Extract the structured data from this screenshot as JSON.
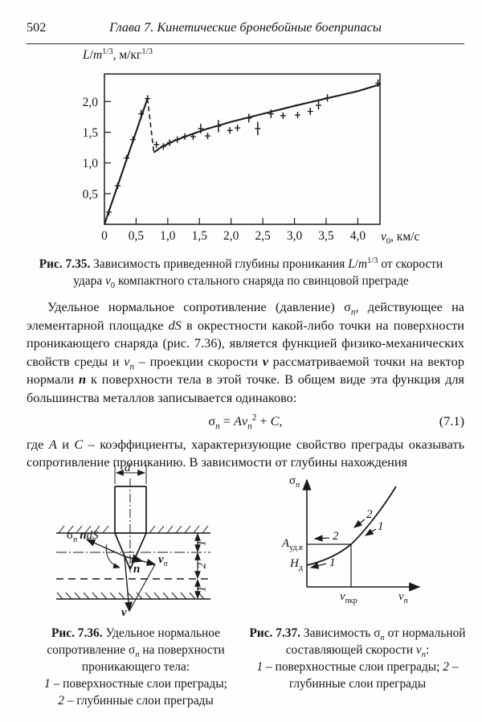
{
  "header": {
    "page_number": "502",
    "running_head": "Глава 7. Кинетические бронебойные боеприпасы"
  },
  "chart_data": {
    "type": "scatter",
    "title": "",
    "ylabel": "L/m^(1/3), м/кг^(1/3)",
    "xlabel": "v0, км/с",
    "ylabel_html": "<i>L</i>/<i>m</i><sup>1/3</sup>, м/кг<sup>1/3</sup>",
    "xlabel_html": "<i>v</i><sub>0</sub>, км/с",
    "xlim": [
      0,
      4.35
    ],
    "ylim": [
      0,
      2.45
    ],
    "xticks": [
      0,
      0.5,
      1.0,
      1.5,
      2.0,
      2.5,
      3.0,
      3.5,
      4.0
    ],
    "yticks": [
      0.5,
      1.0,
      1.5,
      2.0
    ],
    "grid": false,
    "curve_segments": [
      {
        "style": "solid",
        "points": [
          [
            0,
            0
          ],
          [
            0.68,
            2.05
          ]
        ]
      },
      {
        "style": "dashed",
        "points": [
          [
            0.68,
            2.05
          ],
          [
            0.78,
            1.17
          ]
        ]
      },
      {
        "style": "solid",
        "points": [
          [
            0.78,
            1.17
          ],
          [
            0.9,
            1.26
          ],
          [
            1.1,
            1.36
          ],
          [
            1.3,
            1.44
          ],
          [
            1.6,
            1.55
          ],
          [
            2.0,
            1.67
          ],
          [
            2.5,
            1.8
          ],
          [
            3.0,
            1.93
          ],
          [
            3.5,
            2.05
          ],
          [
            4.0,
            2.17
          ],
          [
            4.35,
            2.28
          ]
        ]
      }
    ],
    "points": [
      [
        0.07,
        0.2,
        0.05
      ],
      [
        0.21,
        0.63,
        0.05
      ],
      [
        0.35,
        1.08,
        0.05
      ],
      [
        0.45,
        1.38,
        0.05
      ],
      [
        0.58,
        1.8,
        0.07
      ],
      [
        0.68,
        2.05,
        0.05
      ],
      [
        0.82,
        1.3,
        0.05
      ],
      [
        0.93,
        1.27,
        0.04
      ],
      [
        1.03,
        1.33,
        0.04
      ],
      [
        1.15,
        1.38,
        0.04
      ],
      [
        1.27,
        1.43,
        0.05
      ],
      [
        1.4,
        1.43,
        0.04
      ],
      [
        1.52,
        1.56,
        0.08
      ],
      [
        1.63,
        1.44,
        0.05
      ],
      [
        1.8,
        1.6,
        0.1
      ],
      [
        1.98,
        1.53,
        0.05
      ],
      [
        2.1,
        1.57,
        0.04
      ],
      [
        2.28,
        1.73,
        0.07
      ],
      [
        2.42,
        1.56,
        0.11
      ],
      [
        2.63,
        1.8,
        0.07
      ],
      [
        2.82,
        1.77,
        0.05
      ],
      [
        3.05,
        1.78,
        0.05
      ],
      [
        3.25,
        1.84,
        0.06
      ],
      [
        3.38,
        1.94,
        0.07
      ],
      [
        3.52,
        2.06,
        0.06
      ],
      [
        4.32,
        2.3,
        0.06
      ]
    ]
  },
  "fig35": {
    "caption_html": "<b>Рис.&nbsp;7.35.</b> Зависимость приведенной глубины проникания <i>L</i>/<i>m</i><sup>1/3</sup>&nbsp;от скорости удара <i>v</i><sub>0</sub> компактного стального снаряда по свинцовой преграде"
  },
  "body": {
    "p1_html": "Удельное нормальное сопротивление (давление) σ<sub><i>n</i></sub>, действующее на элементарной площадке <i>dS</i> в окрестности какой-либо точки на поверхности проникающего снаряда (рис.&nbsp;7.36), является функцией физико-механических свойств среды и <i>v<sub>n</sub></i> – проекции скорости <b><i>v</i></b> рассматриваемой точки на вектор нормали <b><i>n</i></b> к поверхности тела в этой точке. В общем виде эта функция для большинства металлов записывается одинаково:",
    "equation_html": "σ<sub><i>n</i></sub> = <i>Аv</i><sub><i>n</i></sub><sup>2</sup> + <i>С</i>,",
    "equation_number": "(7.1)",
    "p2_html": "где <i>А</i> и <i>С</i> – коэффициенты, характеризующие свойство преграды оказывать сопротивление прониканию. В зависимости от глубины нахождения"
  },
  "fig36": {
    "labels": {
      "d": "<i>d</i>",
      "sigma_n_dS": "σ<sub><i>n</i></sub>&thinsp;<b><i>n</i></b><i>dS</i>",
      "n": "<b><i>n</i></b>",
      "v_n": "<b><i>v</i></b><sub><i>n</i></sub>",
      "v": "<b><i>v</i></b>",
      "dim_top": "1",
      "dim_mid": "2",
      "dim_bot": "1"
    },
    "caption_html": "<b>Рис.&nbsp;7.36.</b> Удельное нормальное сопротивление σ<sub><i>n</i></sub> на поверхности проникающего тела:",
    "legend_html": "<i>1</i> – поверхностные слои преграды;<br><i>2</i> – глубинные слои преграды"
  },
  "fig37": {
    "labels": {
      "sigma_axis": "σ<sub><i>n</i></sub>",
      "vn_axis": "<i>v</i><sub><i>n</i></sub>",
      "a_level": "<i>А</i><sub>уд.в</sub>",
      "h_level": "<i>Н</i><sub>д</sub>",
      "v_critical": "<i>v</i><sub><i>n</i>кр</sub>",
      "curve_2": "<i>2</i>",
      "curve_1": "<i>1</i>",
      "left_2": "<i>2</i>",
      "left_1": "<i>1</i>"
    },
    "caption_html": "<b>Рис.&nbsp;7.37.</b> Зависимость σ<sub><i>n</i></sub> от нормальной составляющей скорости <i>v</i><sub><i>n</i></sub>:",
    "legend_html": "<i>1</i> – поверхностные слои преграды; <i>2</i> – глубинные слои преграды"
  }
}
